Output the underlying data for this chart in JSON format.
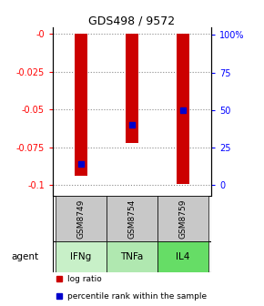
{
  "title": "GDS498 / 9572",
  "samples": [
    "GSM8749",
    "GSM8754",
    "GSM8759"
  ],
  "agents": [
    "IFNg",
    "TNFa",
    "IL4"
  ],
  "log_ratios": [
    -0.094,
    -0.072,
    -0.099
  ],
  "percentile_ranks": [
    0.14,
    0.4,
    0.5
  ],
  "ylim_left": [
    -0.107,
    0.004
  ],
  "ylim_right": [
    -0.07,
    1.05
  ],
  "yticks_left": [
    0,
    -0.025,
    -0.05,
    -0.075,
    -0.1
  ],
  "yticks_right": [
    0,
    0.25,
    0.5,
    0.75,
    1.0
  ],
  "ytick_labels_left": [
    "-0",
    "-0.025",
    "-0.05",
    "-0.075",
    "-0.1"
  ],
  "ytick_labels_right": [
    "0",
    "25",
    "50",
    "75",
    "100%"
  ],
  "bar_color": "#cc0000",
  "dot_color": "#0000cc",
  "gsm_box_color": "#c8c8c8",
  "agent_colors": [
    "#c8f0c8",
    "#b0e8b0",
    "#66dd66"
  ],
  "legend_bar_label": "log ratio",
  "legend_dot_label": "percentile rank within the sample",
  "bar_width": 0.25
}
